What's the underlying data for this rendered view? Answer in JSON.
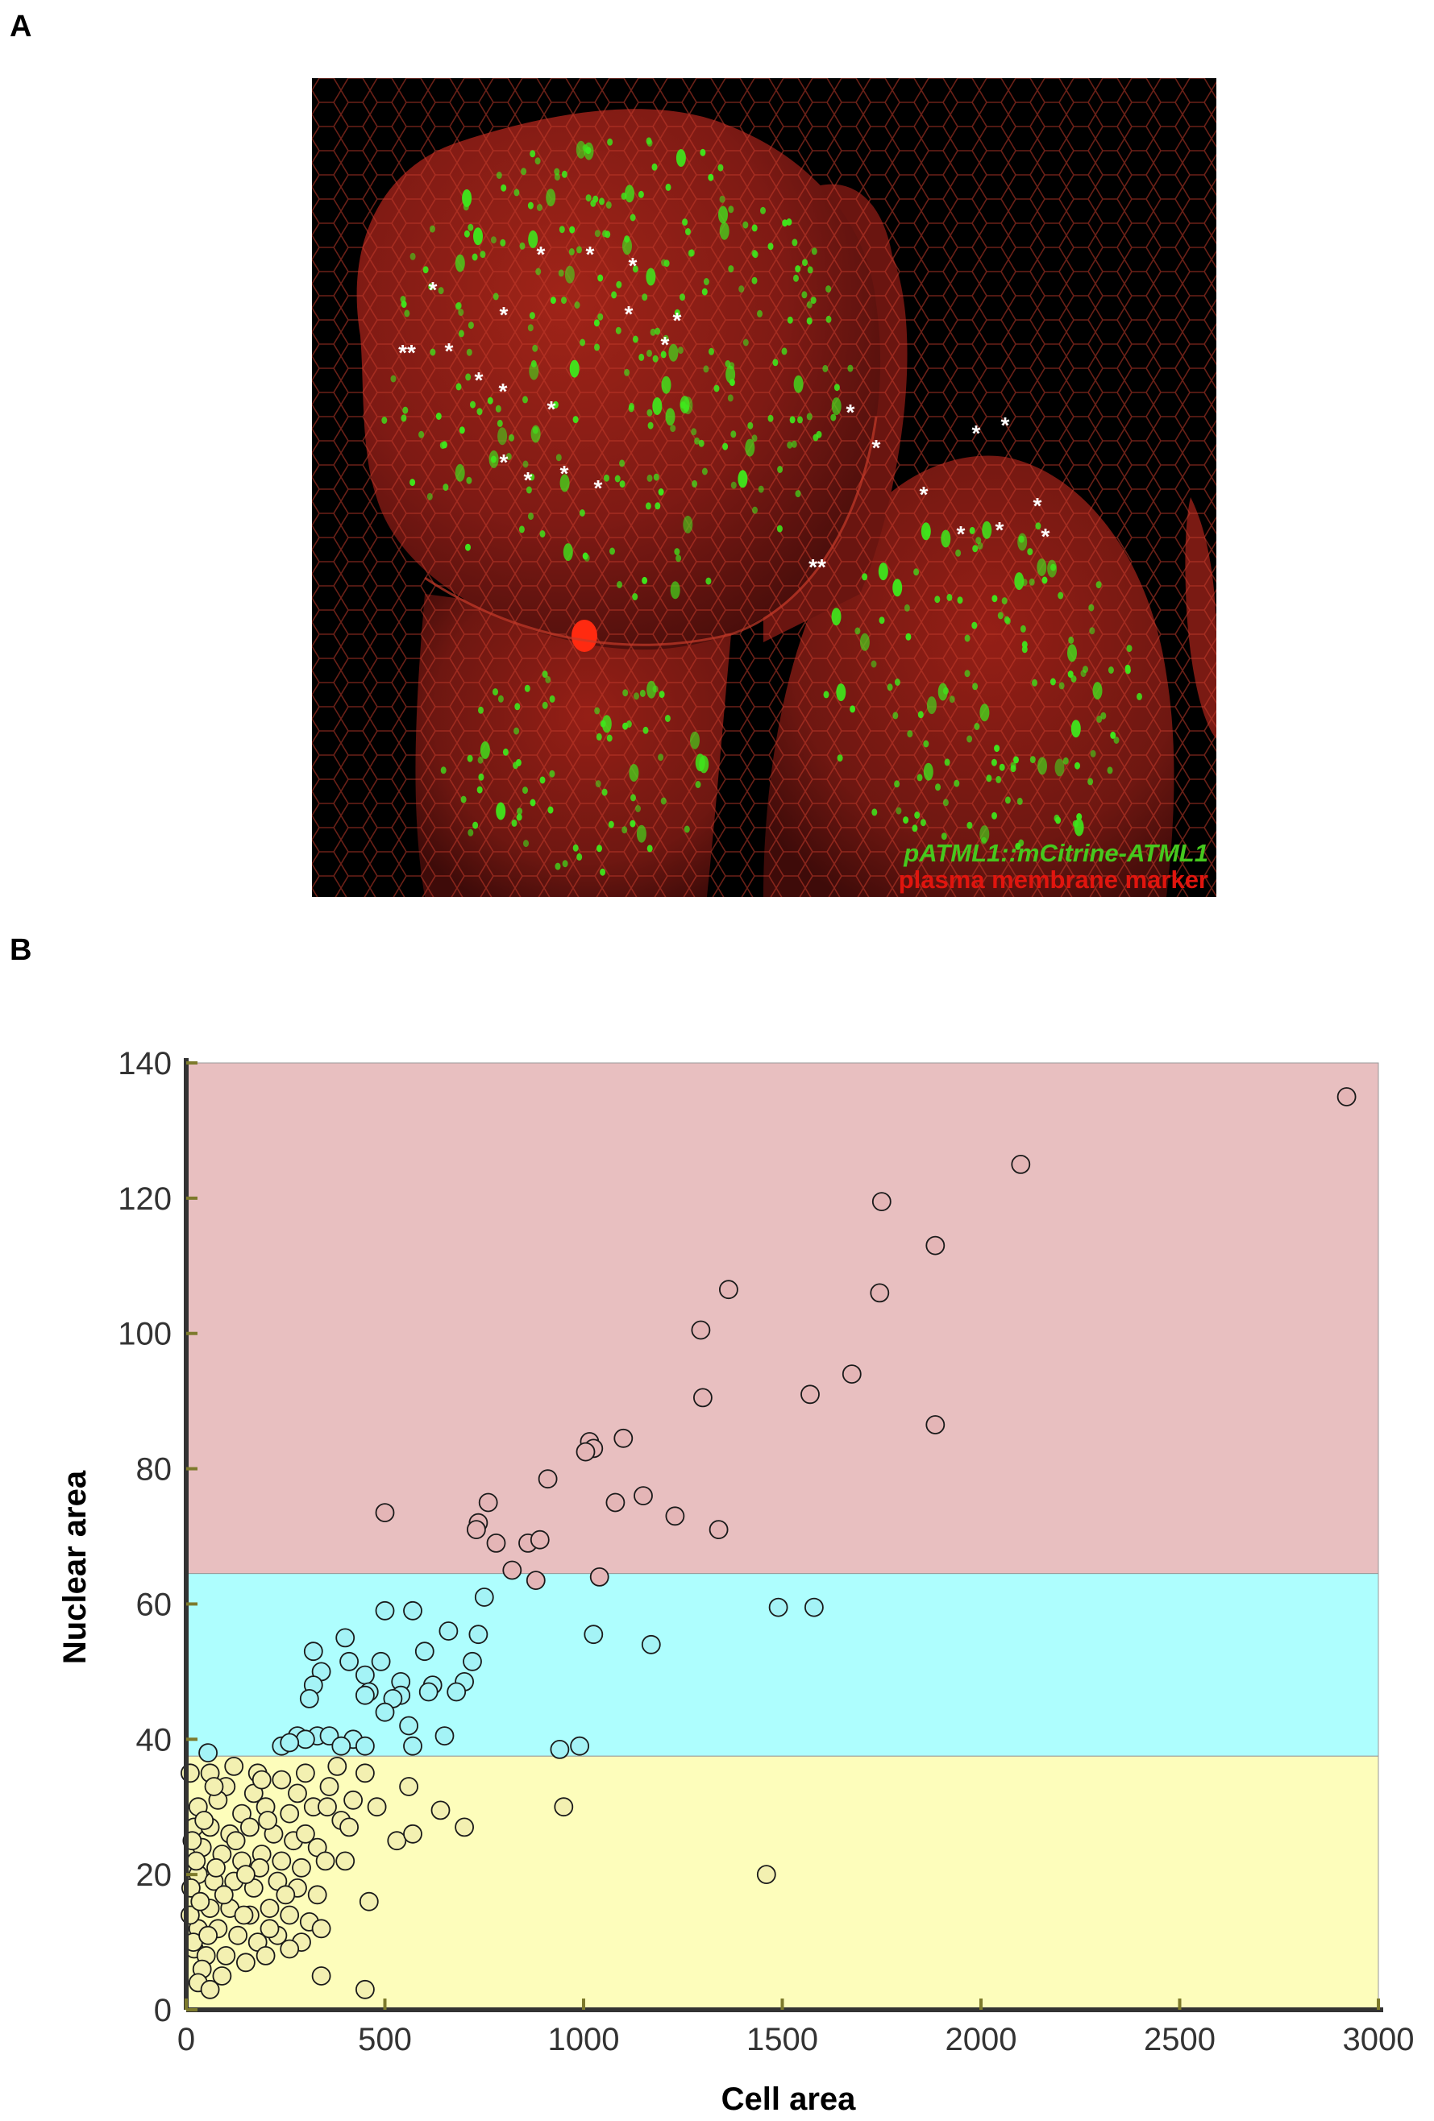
{
  "panels": {
    "a": {
      "label": "A"
    },
    "b": {
      "label": "B"
    }
  },
  "micrograph": {
    "legend_green": "pATML1::mCitrine-ATML1",
    "legend_red": "plasma membrane marker",
    "asterisk": "*",
    "double_asterisk": "**",
    "colors": {
      "background": "#000000",
      "tissue": "#8a1c16",
      "nucleus": "#3fe61c",
      "legend_green": "#46c81e",
      "legend_red": "#e0150e"
    }
  },
  "chart_data": {
    "type": "scatter",
    "xlabel": "Cell area",
    "ylabel": "Nuclear area",
    "xlim": [
      0,
      3000
    ],
    "ylim": [
      0,
      140
    ],
    "xticks": [
      0,
      500,
      1000,
      1500,
      2000,
      2500,
      3000
    ],
    "yticks": [
      0,
      20,
      40,
      60,
      80,
      100,
      120,
      140
    ],
    "bands": [
      {
        "from": 64.5,
        "to": 140,
        "color": "#e8bfc0"
      },
      {
        "from": 37.5,
        "to": 64.5,
        "color": "#aefefe"
      },
      {
        "from": 0,
        "to": 37.5,
        "color": "#fdfdbb"
      }
    ],
    "series": [
      {
        "color": "#e4b5b6",
        "points": [
          [
            2920,
            135
          ],
          [
            2100,
            125
          ],
          [
            1750,
            119.5
          ],
          [
            1885,
            113
          ],
          [
            1745,
            106
          ],
          [
            1365,
            106.5
          ],
          [
            1295,
            100.5
          ],
          [
            1300,
            90.5
          ],
          [
            1570,
            91
          ],
          [
            1675,
            94
          ],
          [
            1885,
            86.5
          ],
          [
            1100,
            84.5
          ],
          [
            1015,
            84
          ],
          [
            1025,
            83
          ],
          [
            1005,
            82.5
          ],
          [
            910,
            78.5
          ],
          [
            1150,
            76
          ],
          [
            1080,
            75
          ],
          [
            760,
            75
          ],
          [
            1230,
            73
          ],
          [
            500,
            73.5
          ],
          [
            735,
            72
          ],
          [
            730,
            71
          ],
          [
            1340,
            71
          ],
          [
            780,
            69
          ],
          [
            860,
            69
          ],
          [
            890,
            69.5
          ],
          [
            820,
            65
          ],
          [
            1040,
            64
          ],
          [
            880,
            63.5
          ]
        ]
      },
      {
        "color": "#a4f3f6",
        "points": [
          [
            1490,
            59.5
          ],
          [
            1580,
            59.5
          ],
          [
            500,
            59
          ],
          [
            570,
            59
          ],
          [
            750,
            61
          ],
          [
            660,
            56
          ],
          [
            1025,
            55.5
          ],
          [
            400,
            55
          ],
          [
            735,
            55.5
          ],
          [
            1170,
            54
          ],
          [
            320,
            53
          ],
          [
            600,
            53
          ],
          [
            490,
            51.5
          ],
          [
            410,
            51.5
          ],
          [
            720,
            51.5
          ],
          [
            340,
            50
          ],
          [
            450,
            49.5
          ],
          [
            540,
            48.5
          ],
          [
            620,
            48
          ],
          [
            700,
            48.5
          ],
          [
            320,
            48
          ],
          [
            460,
            47
          ],
          [
            680,
            47
          ],
          [
            610,
            47
          ],
          [
            450,
            46.5
          ],
          [
            540,
            46.5
          ],
          [
            520,
            46
          ],
          [
            310,
            46
          ],
          [
            500,
            44
          ],
          [
            560,
            42
          ],
          [
            650,
            40.5
          ],
          [
            330,
            40.5
          ],
          [
            360,
            40.5
          ],
          [
            280,
            40.5
          ],
          [
            300,
            40
          ],
          [
            420,
            40
          ],
          [
            240,
            39
          ],
          [
            390,
            39
          ],
          [
            260,
            39.5
          ],
          [
            450,
            39
          ],
          [
            570,
            39
          ],
          [
            990,
            39
          ],
          [
            940,
            38.5
          ],
          [
            55,
            38
          ]
        ]
      },
      {
        "color": "#f3f0b1",
        "points": [
          [
            60,
            35
          ],
          [
            120,
            36
          ],
          [
            180,
            35
          ],
          [
            240,
            34
          ],
          [
            300,
            35
          ],
          [
            380,
            36
          ],
          [
            450,
            35
          ],
          [
            560,
            33
          ],
          [
            100,
            33
          ],
          [
            170,
            32
          ],
          [
            280,
            32
          ],
          [
            360,
            33
          ],
          [
            420,
            31
          ],
          [
            480,
            30
          ],
          [
            30,
            30
          ],
          [
            80,
            31
          ],
          [
            140,
            29
          ],
          [
            200,
            30
          ],
          [
            260,
            29
          ],
          [
            320,
            30
          ],
          [
            390,
            28
          ],
          [
            20,
            27
          ],
          [
            60,
            27
          ],
          [
            110,
            26
          ],
          [
            160,
            27
          ],
          [
            220,
            26
          ],
          [
            270,
            25
          ],
          [
            330,
            24
          ],
          [
            640,
            29.5
          ],
          [
            700,
            27
          ],
          [
            950,
            30
          ],
          [
            40,
            24
          ],
          [
            90,
            23
          ],
          [
            140,
            22
          ],
          [
            190,
            23
          ],
          [
            240,
            22
          ],
          [
            290,
            21
          ],
          [
            350,
            22
          ],
          [
            30,
            20
          ],
          [
            70,
            19
          ],
          [
            120,
            19
          ],
          [
            170,
            18
          ],
          [
            230,
            19
          ],
          [
            280,
            18
          ],
          [
            330,
            17
          ],
          [
            20,
            16
          ],
          [
            60,
            15
          ],
          [
            110,
            15
          ],
          [
            160,
            14
          ],
          [
            210,
            15
          ],
          [
            260,
            14
          ],
          [
            310,
            13
          ],
          [
            30,
            12
          ],
          [
            80,
            12
          ],
          [
            130,
            11
          ],
          [
            180,
            10
          ],
          [
            230,
            11
          ],
          [
            290,
            10
          ],
          [
            20,
            9
          ],
          [
            50,
            8
          ],
          [
            100,
            8
          ],
          [
            150,
            7
          ],
          [
            200,
            8
          ],
          [
            40,
            6
          ],
          [
            90,
            5
          ],
          [
            30,
            4
          ],
          [
            60,
            3
          ],
          [
            340,
            12
          ],
          [
            460,
            16
          ],
          [
            530,
            25
          ],
          [
            570,
            26
          ],
          [
            1460,
            20
          ],
          [
            340,
            5
          ],
          [
            450,
            3
          ],
          [
            10,
            35
          ],
          [
            15,
            25
          ],
          [
            12,
            18
          ],
          [
            18,
            10
          ],
          [
            10,
            14
          ],
          [
            25,
            22
          ],
          [
            45,
            28
          ],
          [
            35,
            16
          ],
          [
            55,
            11
          ],
          [
            75,
            21
          ],
          [
            95,
            17
          ],
          [
            125,
            25
          ],
          [
            145,
            14
          ],
          [
            185,
            21
          ],
          [
            205,
            28
          ],
          [
            250,
            17
          ],
          [
            300,
            26
          ],
          [
            355,
            30
          ],
          [
            410,
            27
          ],
          [
            260,
            9
          ],
          [
            150,
            20
          ],
          [
            210,
            12
          ],
          [
            70,
            33
          ],
          [
            190,
            34
          ],
          [
            400,
            22
          ]
        ]
      }
    ],
    "colors": {
      "axis": "#333333",
      "tick_label": "#333333",
      "axis_title": "#000000",
      "marker_edge": "#1a1a1a",
      "tick_mark": "#7d7a2c"
    }
  }
}
